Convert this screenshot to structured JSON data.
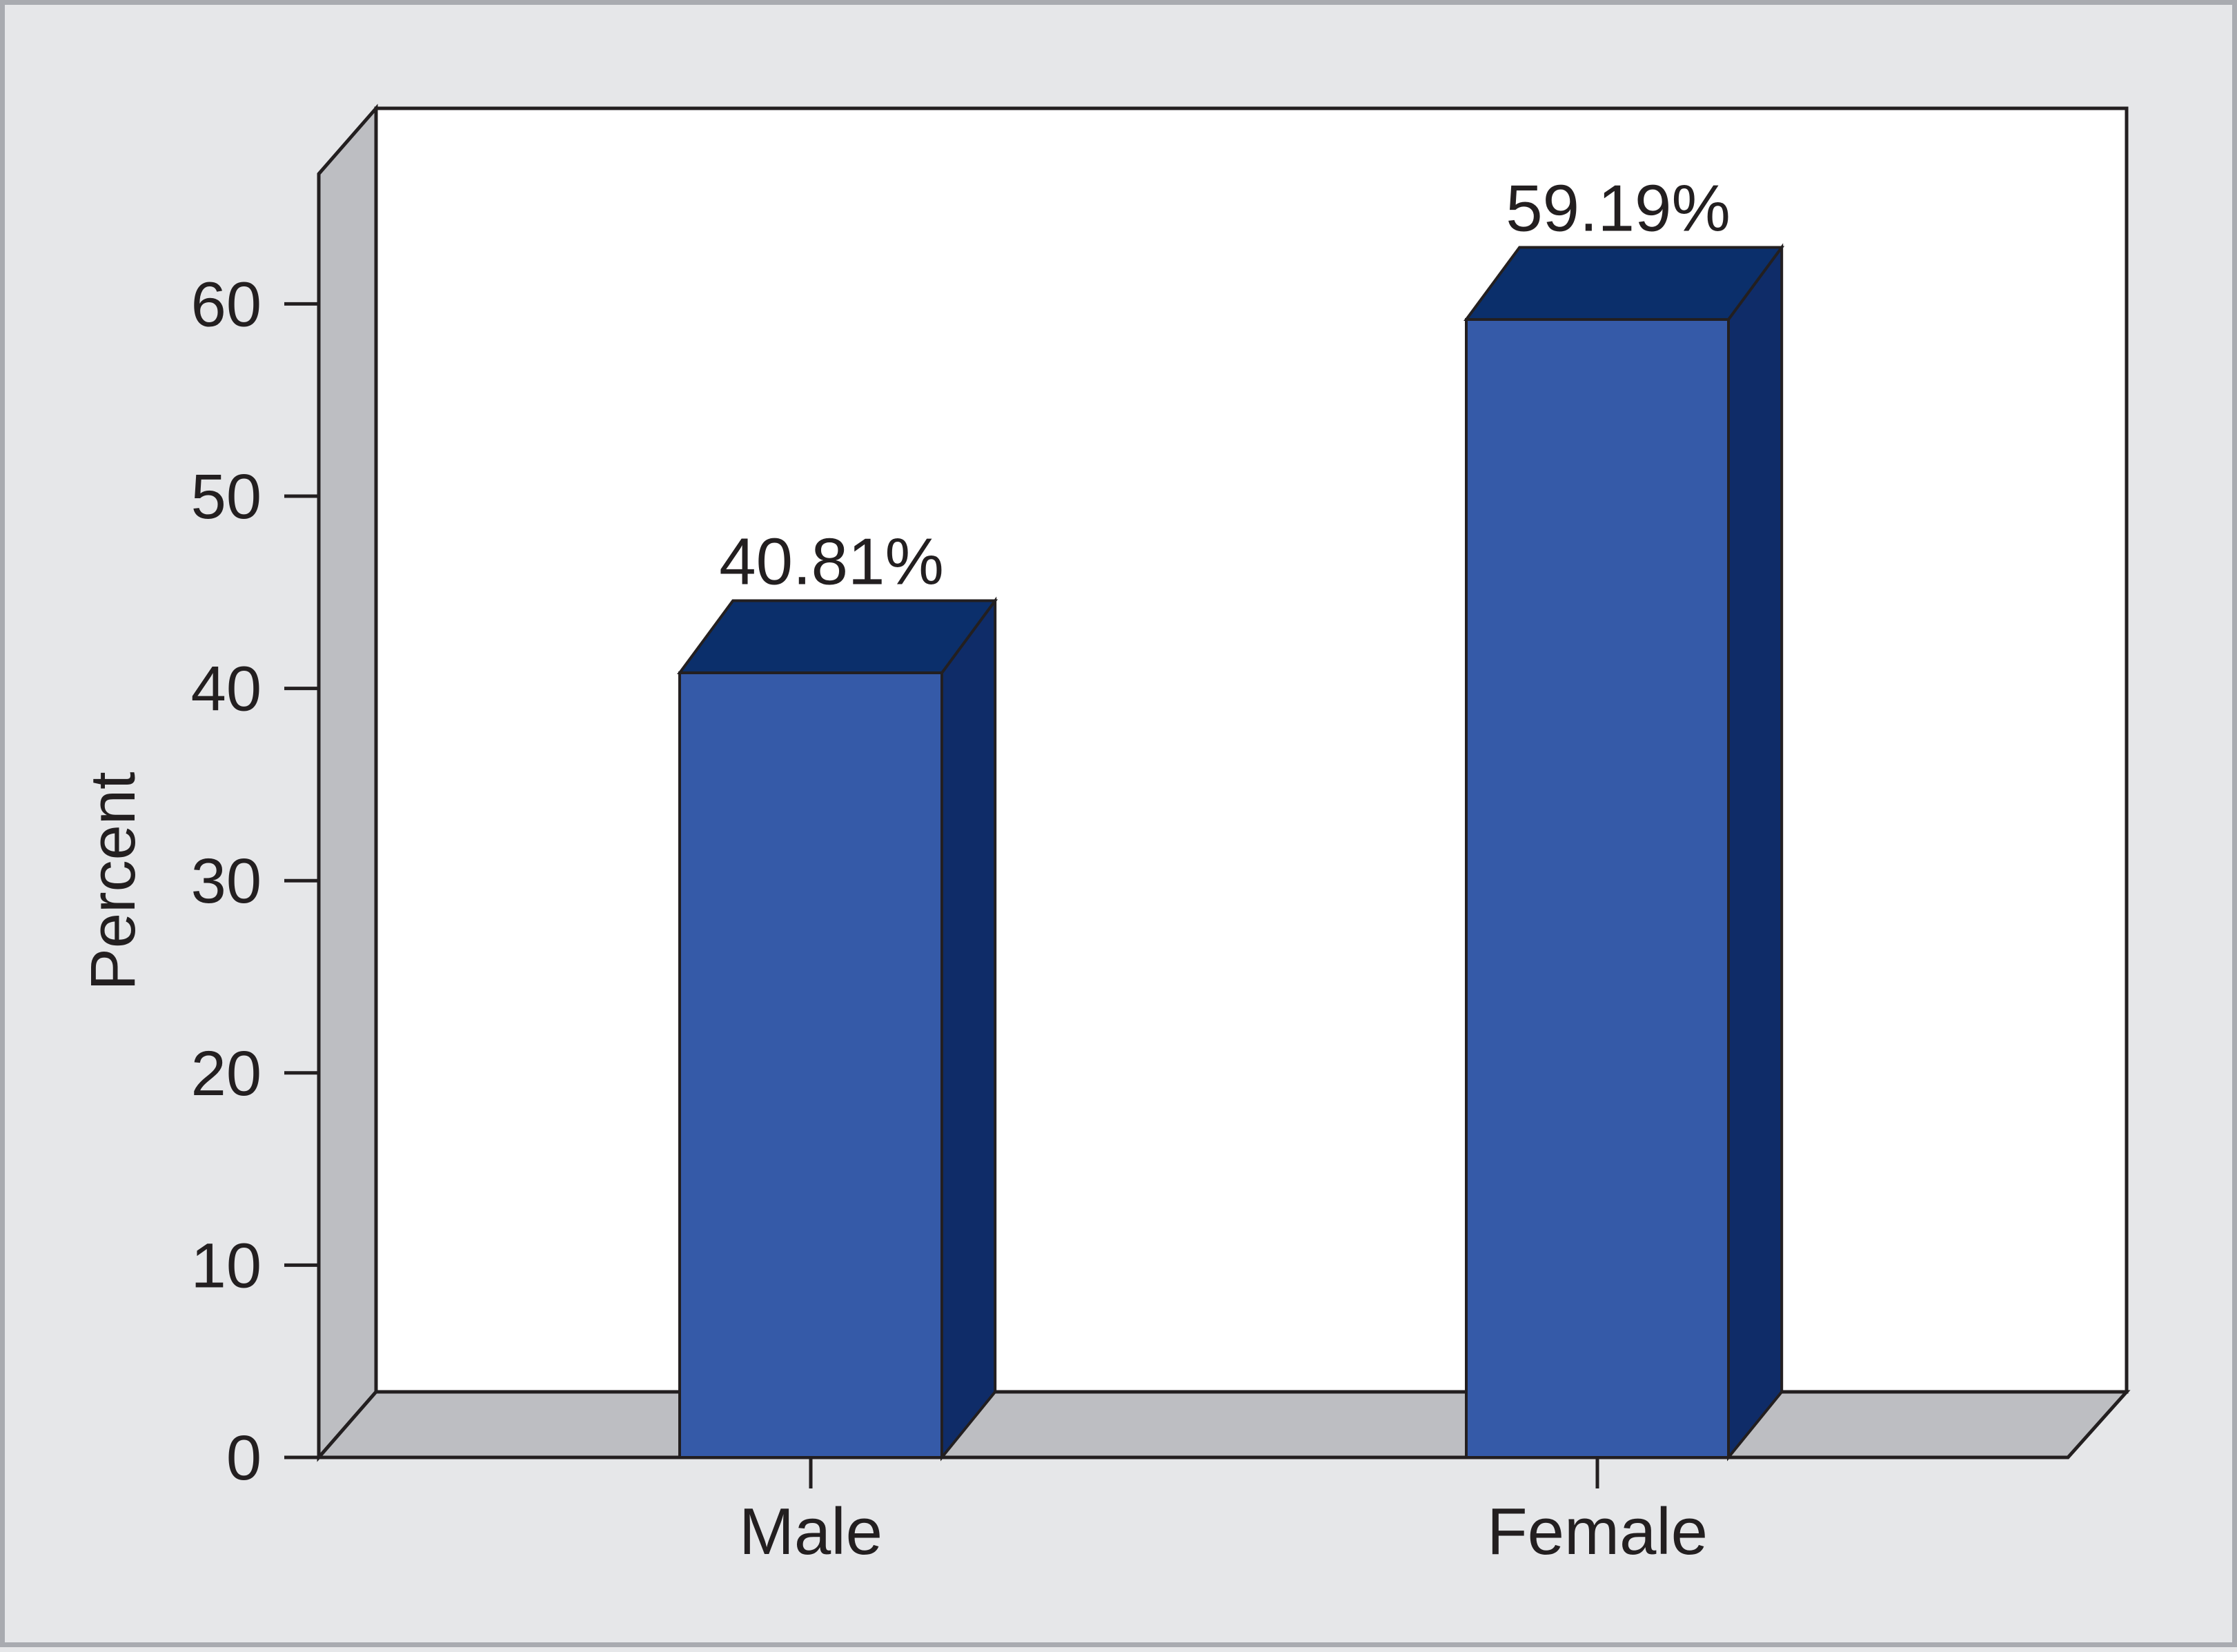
{
  "chart_data": {
    "type": "bar",
    "categories": [
      "Male",
      "Female"
    ],
    "values": [
      40.81,
      59.19
    ],
    "value_labels": [
      "40.81%",
      "59.19%"
    ],
    "ylabel": "Percent",
    "xlabel": "",
    "title": "",
    "ylim": [
      0,
      67
    ],
    "yticks": [
      0,
      10,
      20,
      30,
      40,
      50,
      60
    ],
    "grid": false,
    "style": "3d",
    "colors": {
      "bar_front": "#355aa8",
      "bar_top": "#0b2f6b",
      "bar_side": "#0f2c68",
      "wall_side": "#bdbec2",
      "floor": "#bdbec2",
      "plot_background": "#ffffff",
      "outline": "#231f20"
    }
  }
}
